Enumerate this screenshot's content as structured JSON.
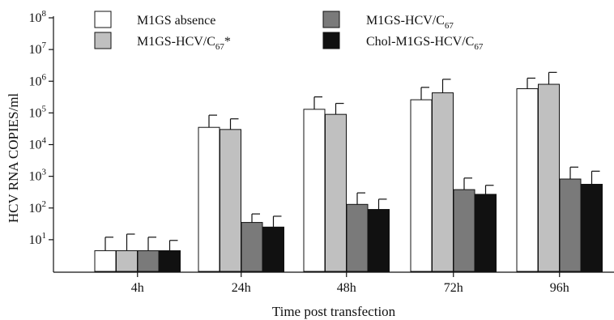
{
  "chart_data": {
    "type": "bar",
    "scale": "log10",
    "xlabel": "Time post transfection",
    "ylabel": "HCV RNA COPIES/ml",
    "ylim": [
      1,
      100000000
    ],
    "y_ticks": [
      {
        "value": 10,
        "base": "10",
        "exp": "1"
      },
      {
        "value": 100,
        "base": "10",
        "exp": "2"
      },
      {
        "value": 1000,
        "base": "10",
        "exp": "3"
      },
      {
        "value": 10000,
        "base": "10",
        "exp": "4"
      },
      {
        "value": 100000,
        "base": "10",
        "exp": "5"
      },
      {
        "value": 1000000,
        "base": "10",
        "exp": "6"
      },
      {
        "value": 10000000,
        "base": "10",
        "exp": "7"
      },
      {
        "value": 100000000,
        "base": "10",
        "exp": "8"
      }
    ],
    "categories": [
      "4h",
      "24h",
      "48h",
      "72h",
      "96h"
    ],
    "series": [
      {
        "name": "M1GS absence",
        "label_main": "M1GS absence",
        "label_sub": "",
        "label_suffix": "",
        "color": "#ffffff",
        "values": [
          4.5,
          35000,
          130000,
          260000,
          580000
        ],
        "errors_upper": [
          12,
          85000,
          320000,
          640000,
          1250000
        ]
      },
      {
        "name": "M1GS-HCV/C67*",
        "label_main": "M1GS-HCV/C",
        "label_sub": "67",
        "label_suffix": "*",
        "color": "#c0c0c0",
        "values": [
          4.5,
          30000,
          90000,
          430000,
          800000
        ],
        "errors_upper": [
          15,
          65000,
          200000,
          1150000,
          1900000
        ]
      },
      {
        "name": "M1GS-HCV/C67",
        "label_main": "M1GS-HCV/C",
        "label_sub": "67",
        "label_suffix": "",
        "color": "#7a7a7a",
        "values": [
          4.5,
          35,
          130,
          380,
          820
        ],
        "errors_upper": [
          12,
          65,
          300,
          880,
          1950
        ]
      },
      {
        "name": "Chol-M1GS-HCV/C67",
        "label_main": "Chol-M1GS-HCV/C",
        "label_sub": "67",
        "label_suffix": "",
        "color": "#111111",
        "values": [
          4.5,
          25,
          90,
          270,
          560
        ],
        "errors_upper": [
          9.5,
          55,
          190,
          520,
          1450
        ]
      }
    ],
    "legend_placement": "top",
    "grid": false
  }
}
